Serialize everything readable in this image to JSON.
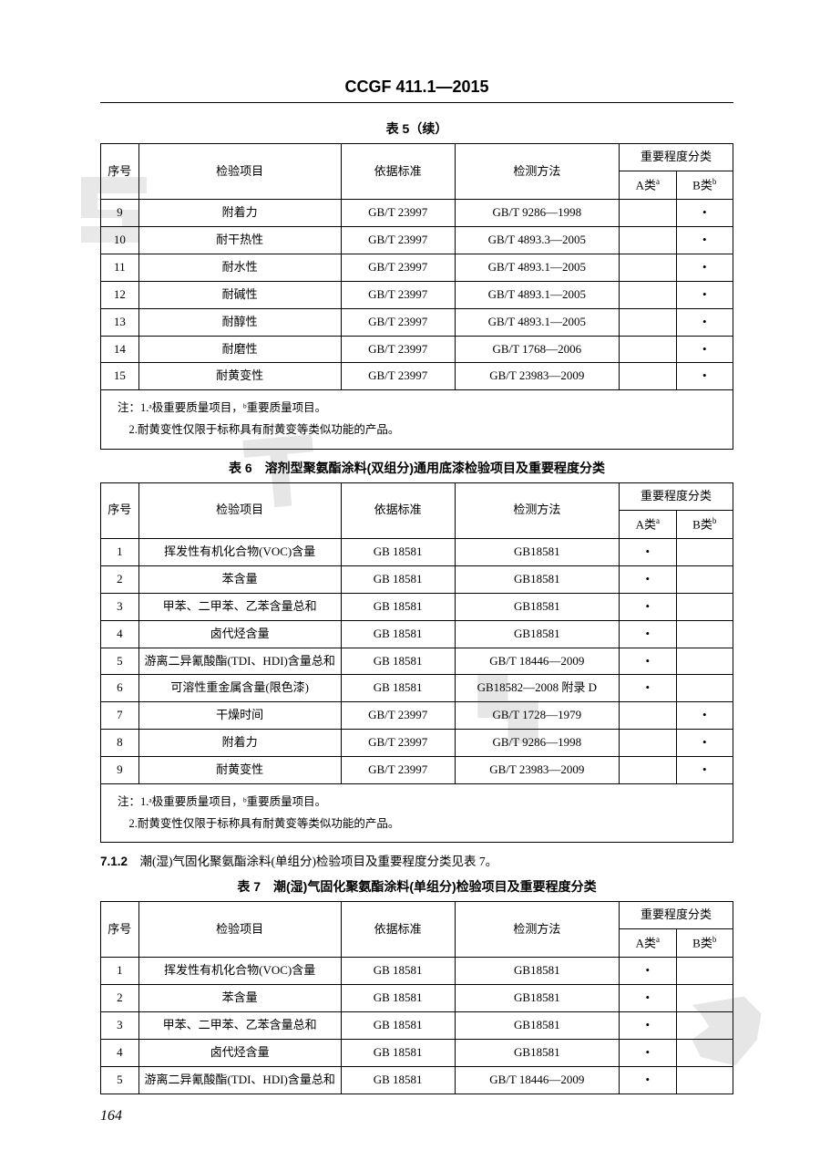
{
  "header_title": "CCGF 411.1—2015",
  "page_number": "164",
  "table5": {
    "caption": "表 5（续）",
    "col_headers": {
      "seq": "序号",
      "item": "检验项目",
      "std": "依据标准",
      "method": "检测方法",
      "class": "重要程度分类",
      "A": "A类",
      "A_sup": "a",
      "B": "B类",
      "B_sup": "b"
    },
    "rows": [
      {
        "seq": "9",
        "item": "附着力",
        "std": "GB/T 23997",
        "method": "GB/T 9286—1998",
        "A": "",
        "B": "•"
      },
      {
        "seq": "10",
        "item": "耐干热性",
        "std": "GB/T 23997",
        "method": "GB/T 4893.3—2005",
        "A": "",
        "B": "•"
      },
      {
        "seq": "11",
        "item": "耐水性",
        "std": "GB/T 23997",
        "method": "GB/T 4893.1—2005",
        "A": "",
        "B": "•"
      },
      {
        "seq": "12",
        "item": "耐碱性",
        "std": "GB/T 23997",
        "method": "GB/T 4893.1—2005",
        "A": "",
        "B": "•"
      },
      {
        "seq": "13",
        "item": "耐醇性",
        "std": "GB/T 23997",
        "method": "GB/T 4893.1—2005",
        "A": "",
        "B": "•"
      },
      {
        "seq": "14",
        "item": "耐磨性",
        "std": "GB/T 23997",
        "method": "GB/T 1768—2006",
        "A": "",
        "B": "•"
      },
      {
        "seq": "15",
        "item": "耐黄变性",
        "std": "GB/T 23997",
        "method": "GB/T 23983—2009",
        "A": "",
        "B": "•"
      }
    ],
    "note1": "注：1.ᵃ极重要质量项目，ᵇ重要质量项目。",
    "note2": "2.耐黄变性仅限于标称具有耐黄变等类似功能的产品。"
  },
  "table6": {
    "caption": "表 6　溶剂型聚氨酯涂料(双组分)通用底漆检验项目及重要程度分类",
    "rows": [
      {
        "seq": "1",
        "item": "挥发性有机化合物(VOC)含量",
        "std": "GB 18581",
        "method": "GB18581",
        "A": "•",
        "B": ""
      },
      {
        "seq": "2",
        "item": "苯含量",
        "std": "GB 18581",
        "method": "GB18581",
        "A": "•",
        "B": ""
      },
      {
        "seq": "3",
        "item": "甲苯、二甲苯、乙苯含量总和",
        "std": "GB 18581",
        "method": "GB18581",
        "A": "•",
        "B": ""
      },
      {
        "seq": "4",
        "item": "卤代烃含量",
        "std": "GB 18581",
        "method": "GB18581",
        "A": "•",
        "B": ""
      },
      {
        "seq": "5",
        "item": "游离二异氰酸酯(TDI、HDI)含量总和",
        "std": "GB 18581",
        "method": "GB/T 18446—2009",
        "A": "•",
        "B": ""
      },
      {
        "seq": "6",
        "item": "可溶性重金属含量(限色漆)",
        "std": "GB 18581",
        "method": "GB18582—2008 附录 D",
        "A": "•",
        "B": ""
      },
      {
        "seq": "7",
        "item": "干燥时间",
        "std": "GB/T 23997",
        "method": "GB/T 1728—1979",
        "A": "",
        "B": "•"
      },
      {
        "seq": "8",
        "item": "附着力",
        "std": "GB/T 23997",
        "method": "GB/T 9286—1998",
        "A": "",
        "B": "•"
      },
      {
        "seq": "9",
        "item": "耐黄变性",
        "std": "GB/T 23997",
        "method": "GB/T 23983—2009",
        "A": "",
        "B": "•"
      }
    ],
    "note1": "注：1.ᵃ极重要质量项目，ᵇ重要质量项目。",
    "note2": "2.耐黄变性仅限于标称具有耐黄变等类似功能的产品。"
  },
  "section712": {
    "num": "7.1.2",
    "text": "潮(湿)气固化聚氨酯涂料(单组分)检验项目及重要程度分类见表 7。"
  },
  "table7": {
    "caption": "表 7　潮(湿)气固化聚氨酯涂料(单组分)检验项目及重要程度分类",
    "rows": [
      {
        "seq": "1",
        "item": "挥发性有机化合物(VOC)含量",
        "std": "GB 18581",
        "method": "GB18581",
        "A": "•",
        "B": ""
      },
      {
        "seq": "2",
        "item": "苯含量",
        "std": "GB 18581",
        "method": "GB18581",
        "A": "•",
        "B": ""
      },
      {
        "seq": "3",
        "item": "甲苯、二甲苯、乙苯含量总和",
        "std": "GB 18581",
        "method": "GB18581",
        "A": "•",
        "B": ""
      },
      {
        "seq": "4",
        "item": "卤代烃含量",
        "std": "GB 18581",
        "method": "GB18581",
        "A": "•",
        "B": ""
      },
      {
        "seq": "5",
        "item": "游离二异氰酸酯(TDI、HDI)含量总和",
        "std": "GB 18581",
        "method": "GB/T 18446—2009",
        "A": "•",
        "B": ""
      }
    ]
  }
}
